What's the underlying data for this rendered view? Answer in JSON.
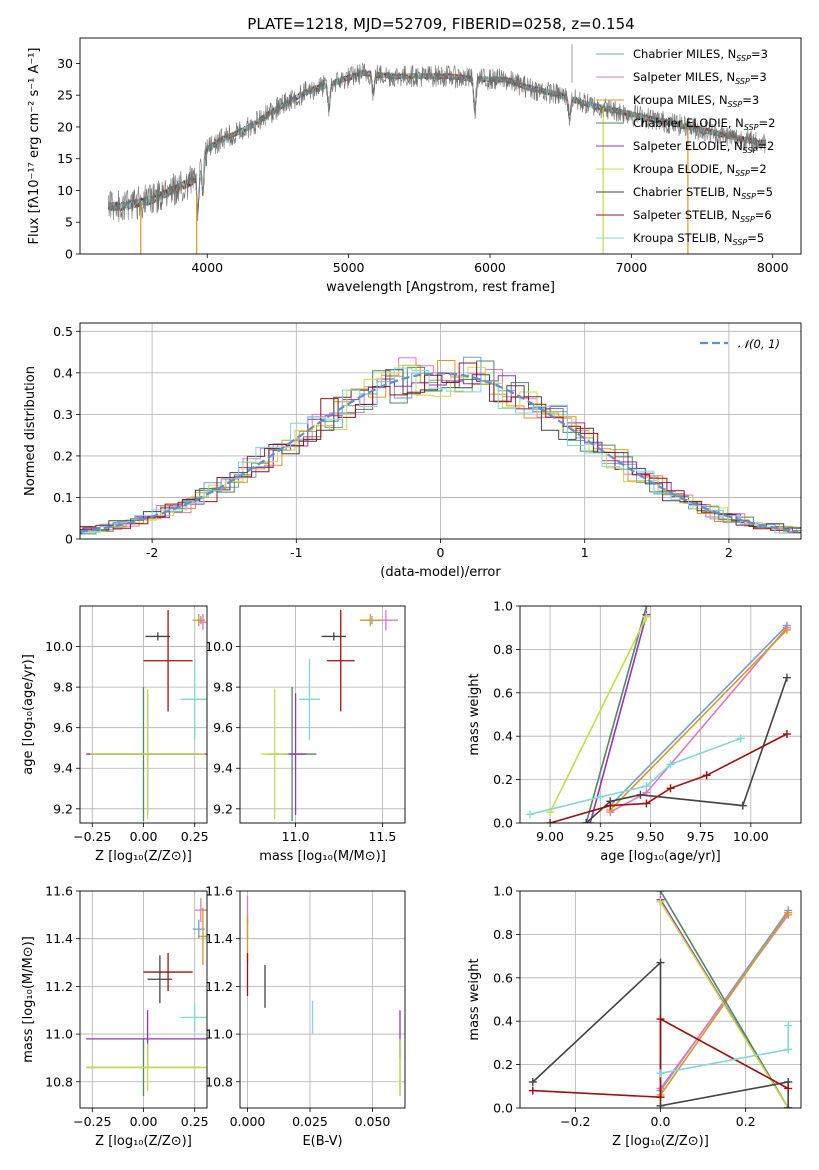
{
  "figure_title": "PLATE=1218, MJD=52709, FIBERID=0258, z=0.154",
  "models": [
    {
      "key": "CM",
      "color": "#6f9fd8",
      "legend": "Chabrier MILES, N",
      "legend_sub": "SSP",
      "legend_tail": "=3"
    },
    {
      "key": "SM",
      "color": "#e377c2",
      "legend": "Salpeter MILES, N",
      "legend_sub": "SSP",
      "legend_tail": "=3"
    },
    {
      "key": "KM",
      "color": "#d99a1e",
      "legend": "Kroupa MILES, N",
      "legend_sub": "SSP",
      "legend_tail": "=3"
    },
    {
      "key": "CE",
      "color": "#4f8a5a",
      "legend": "Chabrier ELODIE, N",
      "legend_sub": "SSP",
      "legend_tail": "=2"
    },
    {
      "key": "SE",
      "color": "#9b30c0",
      "legend": "Salpeter ELODIE, N",
      "legend_sub": "SSP",
      "legend_tail": "=2"
    },
    {
      "key": "KE",
      "color": "#c8dc4a",
      "legend": "Kroupa ELODIE, N",
      "legend_sub": "SSP",
      "legend_tail": "=2"
    },
    {
      "key": "CS",
      "color": "#444444",
      "legend": "Chabrier STELIB, N",
      "legend_sub": "SSP",
      "legend_tail": "=5"
    },
    {
      "key": "SS",
      "color": "#a01010",
      "legend": "Salpeter STELIB, N",
      "legend_sub": "SSP",
      "legend_tail": "=6"
    },
    {
      "key": "KS",
      "color": "#7fd8dc",
      "legend": "Kroupa STELIB, N",
      "legend_sub": "SSP",
      "legend_tail": "=5"
    }
  ],
  "chart_data": [
    {
      "id": "spectrum",
      "type": "line",
      "xlabel": "wavelength [Angstrom, rest frame]",
      "ylabel": "Flux [fλ10⁻¹⁷ erg cm⁻² s⁻¹ A⁻¹]",
      "xlim": [
        3100,
        8200
      ],
      "ylim": [
        0,
        34
      ],
      "xticks": [
        4000,
        5000,
        6000,
        7000,
        8000
      ],
      "yticks": [
        0,
        5,
        10,
        15,
        20,
        25,
        30
      ],
      "continuum_x": [
        3300,
        3400,
        3500,
        3600,
        3700,
        3800,
        3900,
        3950,
        4000,
        4100,
        4300,
        4500,
        4700,
        4900,
        5100,
        5300,
        5500,
        5700,
        5900,
        6100,
        6300,
        6500,
        6700,
        6900,
        7100,
        7300,
        7500,
        7700,
        7900
      ],
      "continuum_y": [
        7.5,
        7.5,
        8,
        8.5,
        9.5,
        10.5,
        11.5,
        13.5,
        16.5,
        18,
        20,
        23,
        25.5,
        27,
        28.5,
        28,
        28,
        28,
        27.5,
        27.5,
        26,
        25,
        23.5,
        22.5,
        21.5,
        20.5,
        19.5,
        18.5,
        17.5
      ],
      "absorption_lines": [
        {
          "x": 3934,
          "depth": 6
        },
        {
          "x": 3969,
          "depth": 5
        },
        {
          "x": 4861,
          "depth": 4
        },
        {
          "x": 5175,
          "depth": 3
        },
        {
          "x": 5893,
          "depth": 5
        },
        {
          "x": 6563,
          "depth": 3
        }
      ],
      "spike": {
        "x": 6580,
        "y": 33
      },
      "dropouts": [
        {
          "x": 3530,
          "color_key": "KM"
        },
        {
          "x": 3925,
          "color_key": "KM"
        },
        {
          "x": 6800,
          "color_key": "KE"
        },
        {
          "x": 7400,
          "color_key": "KM"
        }
      ],
      "legend_position": "upper right"
    },
    {
      "id": "residuals",
      "type": "histogram",
      "xlabel": "(data-model)/error",
      "ylabel": "Normed distribution",
      "xlim": [
        -2.5,
        2.5
      ],
      "ylim": [
        0,
        0.52
      ],
      "xticks": [
        -2,
        -1,
        0,
        1,
        2
      ],
      "yticks": [
        0.0,
        0.1,
        0.2,
        0.3,
        0.4,
        0.5
      ],
      "bin_width": 0.12,
      "gaussian": {
        "label": "𝒩(0, 1)",
        "mean": 0,
        "sigma": 1,
        "color": "#5b8fd6"
      },
      "legend_position": "upper right"
    },
    {
      "id": "z_age",
      "type": "errorbar",
      "xlabel": "Z [log₁₀(Z/Z⊙)]",
      "ylabel": "age  [log₁₀(age/yr)]",
      "xlim": [
        -0.31,
        0.31
      ],
      "ylim": [
        9.13,
        10.2
      ],
      "xticks": [
        -0.25,
        0,
        0.25
      ],
      "yticks": [
        9.2,
        9.4,
        9.6,
        9.8,
        10.0
      ],
      "xtick_labels": [
        "−0.25",
        "0.00",
        "0.25"
      ],
      "ytick_labels": [
        "9.2",
        "9.4",
        "9.6",
        "9.8",
        "10.0"
      ],
      "points": [
        {
          "key": "CM",
          "x": 0.28,
          "xerr": 0.02,
          "y": 10.13,
          "yerr": 0.02
        },
        {
          "key": "SM",
          "x": 0.29,
          "xerr": 0.02,
          "y": 10.12,
          "yerr": 0.04
        },
        {
          "key": "KM",
          "x": 0.27,
          "xerr": 0.03,
          "y": 10.13,
          "yerr": 0.03
        },
        {
          "key": "CE",
          "x": 0.0,
          "xerr": 0.27,
          "y": 9.47,
          "yerr": 0.33
        },
        {
          "key": "SE",
          "x": 0.02,
          "xerr": 0.3,
          "y": 9.47,
          "yerr": 0.3
        },
        {
          "key": "KE",
          "x": 0.02,
          "xerr": 0.28,
          "y": 9.47,
          "yerr": 0.32
        },
        {
          "key": "CS",
          "x": 0.07,
          "xerr": 0.06,
          "y": 10.05,
          "yerr": 0.02
        },
        {
          "key": "SS",
          "x": 0.12,
          "xerr": 0.12,
          "y": 9.93,
          "yerr": 0.25
        },
        {
          "key": "KS",
          "x": 0.25,
          "xerr": 0.07,
          "y": 9.74,
          "yerr": 0.2
        }
      ]
    },
    {
      "id": "mass_age",
      "type": "errorbar",
      "xlabel": "mass [log₁₀(M/M⊙)]",
      "ylabel": "",
      "xlim": [
        10.68,
        11.63
      ],
      "ylim": [
        9.13,
        10.2
      ],
      "xticks": [
        11.0,
        11.5
      ],
      "yticks": [
        9.2,
        9.4,
        9.6,
        9.8,
        10.0
      ],
      "xtick_labels": [
        "11.0",
        "11.5"
      ],
      "ytick_labels": [
        "9.2",
        "9.4",
        "9.6",
        "9.8",
        "10.0"
      ],
      "points": [
        {
          "key": "CM",
          "x": 11.44,
          "xerr": 0.05,
          "y": 10.13,
          "yerr": 0.02
        },
        {
          "key": "SM",
          "x": 11.52,
          "xerr": 0.07,
          "y": 10.13,
          "yerr": 0.05
        },
        {
          "key": "KM",
          "x": 11.43,
          "xerr": 0.06,
          "y": 10.13,
          "yerr": 0.03
        },
        {
          "key": "CE",
          "x": 10.98,
          "xerr": 0.14,
          "y": 9.47,
          "yerr": 0.33
        },
        {
          "key": "SE",
          "x": 11.0,
          "xerr": 0.06,
          "y": 9.47,
          "yerr": 0.3
        },
        {
          "key": "KE",
          "x": 10.88,
          "xerr": 0.08,
          "y": 9.47,
          "yerr": 0.32
        },
        {
          "key": "CS",
          "x": 11.22,
          "xerr": 0.07,
          "y": 10.05,
          "yerr": 0.02
        },
        {
          "key": "SS",
          "x": 11.26,
          "xerr": 0.08,
          "y": 9.93,
          "yerr": 0.25
        },
        {
          "key": "KS",
          "x": 11.08,
          "xerr": 0.06,
          "y": 9.74,
          "yerr": 0.2
        }
      ]
    },
    {
      "id": "age_weight",
      "type": "line",
      "xlabel": "age  [log₁₀(age/yr)]",
      "ylabel": "mass weight",
      "xlim": [
        8.85,
        10.25
      ],
      "ylim": [
        0,
        1
      ],
      "xticks": [
        9.0,
        9.25,
        9.5,
        9.75,
        10.0
      ],
      "yticks": [
        0,
        0.2,
        0.4,
        0.6,
        0.8,
        1.0
      ],
      "xtick_labels": [
        "9.00",
        "9.25",
        "9.50",
        "9.75",
        "10.00"
      ],
      "ytick_labels": [
        "0.0",
        "0.2",
        "0.4",
        "0.6",
        "0.8",
        "1.0"
      ],
      "series": [
        {
          "key": "CM",
          "x": [
            9.3,
            10.18
          ],
          "y": [
            0.08,
            0.91
          ]
        },
        {
          "key": "SM",
          "x": [
            9.3,
            9.48,
            10.18
          ],
          "y": [
            0.05,
            0.14,
            0.9
          ]
        },
        {
          "key": "KM",
          "x": [
            9.3,
            10.18
          ],
          "y": [
            0.06,
            0.89
          ]
        },
        {
          "key": "CE",
          "x": [
            9.18,
            9.48
          ],
          "y": [
            0.0,
            1.0
          ]
        },
        {
          "key": "SE",
          "x": [
            9.2,
            9.48
          ],
          "y": [
            0.0,
            0.96
          ]
        },
        {
          "key": "KE",
          "x": [
            9.0,
            9.48
          ],
          "y": [
            0.05,
            0.95
          ]
        },
        {
          "key": "CS",
          "x": [
            9.18,
            9.3,
            9.45,
            9.96,
            10.18
          ],
          "y": [
            0.0,
            0.1,
            0.13,
            0.08,
            0.67
          ]
        },
        {
          "key": "SS",
          "x": [
            9.0,
            9.3,
            9.48,
            9.6,
            9.78,
            10.18
          ],
          "y": [
            0.0,
            0.08,
            0.09,
            0.16,
            0.22,
            0.41
          ]
        },
        {
          "key": "KS",
          "x": [
            8.9,
            9.25,
            9.48,
            9.6,
            9.95
          ],
          "y": [
            0.04,
            0.12,
            0.17,
            0.27,
            0.39
          ]
        }
      ]
    },
    {
      "id": "z_mass",
      "type": "errorbar",
      "xlabel": "Z [log₁₀(Z/Z⊙)]",
      "ylabel": "mass [log₁₀(M/M⊙)]",
      "xlim": [
        -0.31,
        0.31
      ],
      "ylim": [
        10.69,
        11.6
      ],
      "xticks": [
        -0.25,
        0,
        0.25
      ],
      "yticks": [
        10.8,
        11.0,
        11.2,
        11.4,
        11.6
      ],
      "xtick_labels": [
        "−0.25",
        "0.00",
        "0.25"
      ],
      "ytick_labels": [
        "10.8",
        "11.0",
        "11.2",
        "11.4",
        "11.6"
      ],
      "points": [
        {
          "key": "CM",
          "x": 0.27,
          "xerr": 0.03,
          "y": 11.44,
          "yerr": 0.04
        },
        {
          "key": "SM",
          "x": 0.28,
          "xerr": 0.03,
          "y": 11.52,
          "yerr": 0.05
        },
        {
          "key": "KM",
          "x": 0.29,
          "xerr": 0.02,
          "y": 11.41,
          "yerr": 0.12
        },
        {
          "key": "CE",
          "x": 0.0,
          "xerr": 0.28,
          "y": 10.86,
          "yerr": 0.12
        },
        {
          "key": "SE",
          "x": 0.02,
          "xerr": 0.3,
          "y": 10.98,
          "yerr": 0.12
        },
        {
          "key": "KE",
          "x": 0.02,
          "xerr": 0.3,
          "y": 10.86,
          "yerr": 0.1
        },
        {
          "key": "CS",
          "x": 0.08,
          "xerr": 0.06,
          "y": 11.23,
          "yerr": 0.1
        },
        {
          "key": "SS",
          "x": 0.12,
          "xerr": 0.12,
          "y": 11.26,
          "yerr": 0.08
        },
        {
          "key": "KS",
          "x": 0.25,
          "xerr": 0.07,
          "y": 11.07,
          "yerr": 0.06
        }
      ]
    },
    {
      "id": "ebv_mass",
      "type": "errorbar",
      "xlabel": "E(B-V)",
      "ylabel": "",
      "xlim": [
        -0.003,
        0.063
      ],
      "ylim": [
        10.69,
        11.6
      ],
      "xticks": [
        0.0,
        0.025,
        0.05
      ],
      "yticks": [
        10.8,
        11.0,
        11.2,
        11.4,
        11.6
      ],
      "xtick_labels": [
        "0.000",
        "0.025",
        "0.050"
      ],
      "ytick_labels": [
        "10.8",
        "11.0",
        "11.2",
        "11.4",
        "11.6"
      ],
      "points": [
        {
          "key": "CM",
          "x": 0.0,
          "xerr": 0.0,
          "y": 11.44,
          "yerr": 0.04
        },
        {
          "key": "SM",
          "x": 0.0,
          "xerr": 0.0,
          "y": 11.52,
          "yerr": 0.06
        },
        {
          "key": "KM",
          "x": 0.0,
          "xerr": 0.0,
          "y": 11.4,
          "yerr": 0.1
        },
        {
          "key": "CE",
          "x": 0.061,
          "xerr": 0.0,
          "y": 10.86,
          "yerr": 0.12
        },
        {
          "key": "SE",
          "x": 0.061,
          "xerr": 0.0,
          "y": 11.0,
          "yerr": 0.1
        },
        {
          "key": "KE",
          "x": 0.061,
          "xerr": 0.0,
          "y": 10.86,
          "yerr": 0.12
        },
        {
          "key": "CS",
          "x": 0.007,
          "xerr": 0.0,
          "y": 11.2,
          "yerr": 0.09
        },
        {
          "key": "SS",
          "x": 0.0,
          "xerr": 0.0,
          "y": 11.25,
          "yerr": 0.09
        },
        {
          "key": "KS",
          "x": 0.026,
          "xerr": 0.0,
          "y": 11.07,
          "yerr": 0.07
        }
      ]
    },
    {
      "id": "z_weight",
      "type": "line",
      "xlabel": "Z [log₁₀(Z/Z⊙)]",
      "ylabel": "mass weight",
      "xlim": [
        -0.33,
        0.33
      ],
      "ylim": [
        0,
        1
      ],
      "xticks": [
        -0.2,
        0.0,
        0.2
      ],
      "yticks": [
        0,
        0.2,
        0.4,
        0.6,
        0.8,
        1.0
      ],
      "xtick_labels": [
        "−0.2",
        "0.0",
        "0.2"
      ],
      "ytick_labels": [
        "0.0",
        "0.2",
        "0.4",
        "0.6",
        "0.8",
        "1.0"
      ],
      "series": [
        {
          "key": "CM",
          "x": [
            0.0,
            0.3
          ],
          "y": [
            0.08,
            0.91
          ]
        },
        {
          "key": "SM",
          "x": [
            0.0,
            0.0,
            0.3
          ],
          "y": [
            0.05,
            0.09,
            0.89
          ]
        },
        {
          "key": "KM",
          "x": [
            0.0,
            0.3
          ],
          "y": [
            0.06,
            0.9
          ]
        },
        {
          "key": "CE",
          "x": [
            0.0,
            0.3
          ],
          "y": [
            1.0,
            0.0
          ]
        },
        {
          "key": "SE",
          "x": [
            0.0,
            0.3
          ],
          "y": [
            0.96,
            0.0
          ]
        },
        {
          "key": "KE",
          "x": [
            0.0,
            0.3
          ],
          "y": [
            0.95,
            0.0
          ]
        },
        {
          "key": "CS",
          "x": [
            -0.3,
            0.0,
            0.0,
            0.3,
            0.3
          ],
          "y": [
            0.12,
            0.67,
            0.01,
            0.12,
            0.0
          ]
        },
        {
          "key": "SS",
          "x": [
            -0.3,
            0.0,
            0.0,
            0.3
          ],
          "y": [
            0.08,
            0.05,
            0.41,
            0.09
          ]
        },
        {
          "key": "KS",
          "x": [
            0.0,
            0.3,
            0.3
          ],
          "y": [
            0.16,
            0.27,
            0.38
          ]
        }
      ]
    }
  ]
}
